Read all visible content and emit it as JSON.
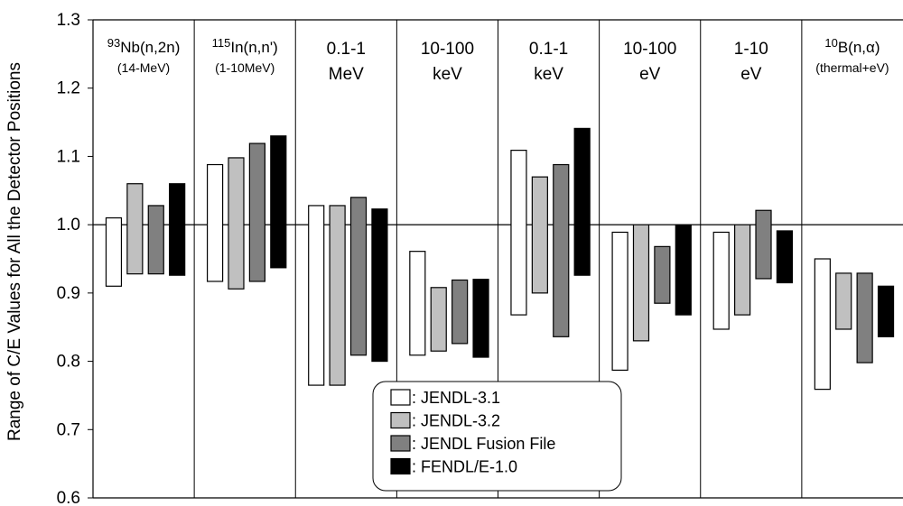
{
  "chart_data": {
    "type": "bar",
    "title": "",
    "xlabel": "",
    "ylabel": "Range of C/E Values for All the Detector Positions",
    "ylim": [
      0.6,
      1.3
    ],
    "yticks": [
      "0.6",
      "0.7",
      "0.8",
      "0.9",
      "1.0",
      "1.1",
      "1.2",
      "1.3"
    ],
    "grid": false,
    "reference_line": 1.0,
    "legend_position": "bottom-center",
    "categories": [
      {
        "sup": "93",
        "main": "Nb(n,2n)",
        "sub": "(14-MeV)"
      },
      {
        "sup": "115",
        "main": "In(n,n')",
        "sub": "(1-10MeV)"
      },
      {
        "sup": "",
        "main": "0.1-1",
        "sub": "MeV"
      },
      {
        "sup": "",
        "main": "10-100",
        "sub": "keV"
      },
      {
        "sup": "",
        "main": "0.1-1",
        "sub": "keV"
      },
      {
        "sup": "",
        "main": "10-100",
        "sub": "eV"
      },
      {
        "sup": "",
        "main": "1-10",
        "sub": "eV"
      },
      {
        "sup": "10",
        "main": "B(n,α)",
        "sub": "(thermal+eV)"
      }
    ],
    "series": [
      {
        "name": "JENDL-3.1",
        "color": "#ffffff",
        "ranges": [
          [
            0.91,
            1.01
          ],
          [
            0.917,
            1.088
          ],
          [
            0.765,
            1.028
          ],
          [
            0.809,
            0.961
          ],
          [
            0.868,
            1.109
          ],
          [
            0.787,
            0.989
          ],
          [
            0.847,
            0.989
          ],
          [
            0.759,
            0.95
          ]
        ]
      },
      {
        "name": "JENDL-3.2",
        "color": "#c0c0c0",
        "ranges": [
          [
            0.928,
            1.06
          ],
          [
            0.906,
            1.098
          ],
          [
            0.765,
            1.028
          ],
          [
            0.815,
            0.908
          ],
          [
            0.9,
            1.07
          ],
          [
            0.83,
            1.0
          ],
          [
            0.868,
            1.0
          ],
          [
            0.847,
            0.929
          ]
        ]
      },
      {
        "name": "JENDL Fusion File",
        "color": "#808080",
        "ranges": [
          [
            0.928,
            1.028
          ],
          [
            0.917,
            1.119
          ],
          [
            0.809,
            1.04
          ],
          [
            0.826,
            0.919
          ],
          [
            0.836,
            1.088
          ],
          [
            0.885,
            0.968
          ],
          [
            0.921,
            1.021
          ],
          [
            0.798,
            0.929
          ]
        ]
      },
      {
        "name": "FENDL/E-1.0",
        "color": "#000000",
        "ranges": [
          [
            0.926,
            1.06
          ],
          [
            0.937,
            1.13
          ],
          [
            0.8,
            1.023
          ],
          [
            0.806,
            0.92
          ],
          [
            0.926,
            1.141
          ],
          [
            0.868,
            1.0
          ],
          [
            0.915,
            0.991
          ],
          [
            0.836,
            0.91
          ]
        ]
      }
    ]
  }
}
